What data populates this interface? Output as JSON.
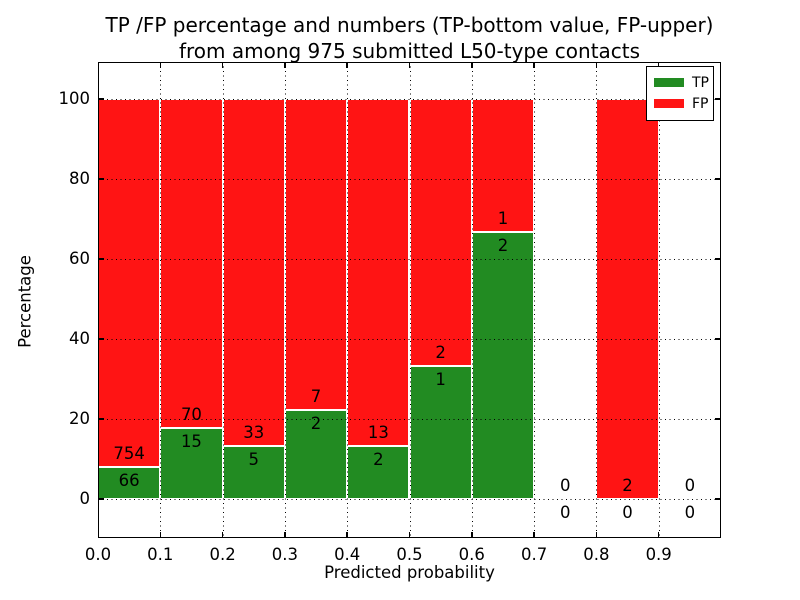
{
  "chart_data": {
    "type": "bar",
    "stacked": true,
    "title_lines": [
      "TP /FP percentage and numbers (TP-bottom value, FP-upper)",
      "from among 975 submitted L50-type contacts"
    ],
    "xlabel": "Predicted probability",
    "ylabel": "Percentage",
    "total_submitted": 975,
    "xlim": [
      0.0,
      1.0
    ],
    "ylim": [
      -9.75,
      109.25
    ],
    "xticks": {
      "values": [
        0.0,
        0.1,
        0.2,
        0.3,
        0.4,
        0.5,
        0.6,
        0.7,
        0.8,
        0.9
      ],
      "labels": [
        "0.0",
        "0.1",
        "0.2",
        "0.3",
        "0.4",
        "0.5",
        "0.6",
        "0.7",
        "0.8",
        "0.9"
      ]
    },
    "yticks": {
      "values": [
        0,
        20,
        40,
        60,
        80,
        100
      ],
      "labels": [
        "0",
        "20",
        "40",
        "60",
        "80",
        "100"
      ]
    },
    "grid": {
      "style": "dotted",
      "color": "#000000",
      "drawn_above_bars": true
    },
    "colors": {
      "tp": "#228b22",
      "fp": "#ff1414",
      "bar_edge": "#ffffff"
    },
    "legend": {
      "position": "upper right",
      "entries": [
        {
          "label": "TP",
          "color": "#228b22"
        },
        {
          "label": "FP",
          "color": "#ff1414"
        }
      ]
    },
    "bins": [
      {
        "x0": 0.0,
        "x1": 0.1,
        "tp": 66,
        "fp": 754,
        "tp_pct": 8.05,
        "fp_pct": 91.95
      },
      {
        "x0": 0.1,
        "x1": 0.2,
        "tp": 15,
        "fp": 70,
        "tp_pct": 17.65,
        "fp_pct": 82.35
      },
      {
        "x0": 0.2,
        "x1": 0.3,
        "tp": 5,
        "fp": 33,
        "tp_pct": 13.16,
        "fp_pct": 86.84
      },
      {
        "x0": 0.3,
        "x1": 0.4,
        "tp": 2,
        "fp": 7,
        "tp_pct": 22.22,
        "fp_pct": 77.78
      },
      {
        "x0": 0.4,
        "x1": 0.5,
        "tp": 2,
        "fp": 13,
        "tp_pct": 13.33,
        "fp_pct": 86.67
      },
      {
        "x0": 0.5,
        "x1": 0.6,
        "tp": 1,
        "fp": 2,
        "tp_pct": 33.33,
        "fp_pct": 66.67
      },
      {
        "x0": 0.6,
        "x1": 0.7,
        "tp": 2,
        "fp": 1,
        "tp_pct": 66.67,
        "fp_pct": 33.33
      },
      {
        "x0": 0.7,
        "x1": 0.8,
        "tp": 0,
        "fp": 0,
        "tp_pct": 0,
        "fp_pct": 0
      },
      {
        "x0": 0.8,
        "x1": 0.9,
        "tp": 0,
        "fp": 2,
        "tp_pct": 0,
        "fp_pct": 100
      },
      {
        "x0": 0.9,
        "x1": 1.0,
        "tp": 0,
        "fp": 0,
        "tp_pct": 0,
        "fp_pct": 0
      }
    ]
  }
}
